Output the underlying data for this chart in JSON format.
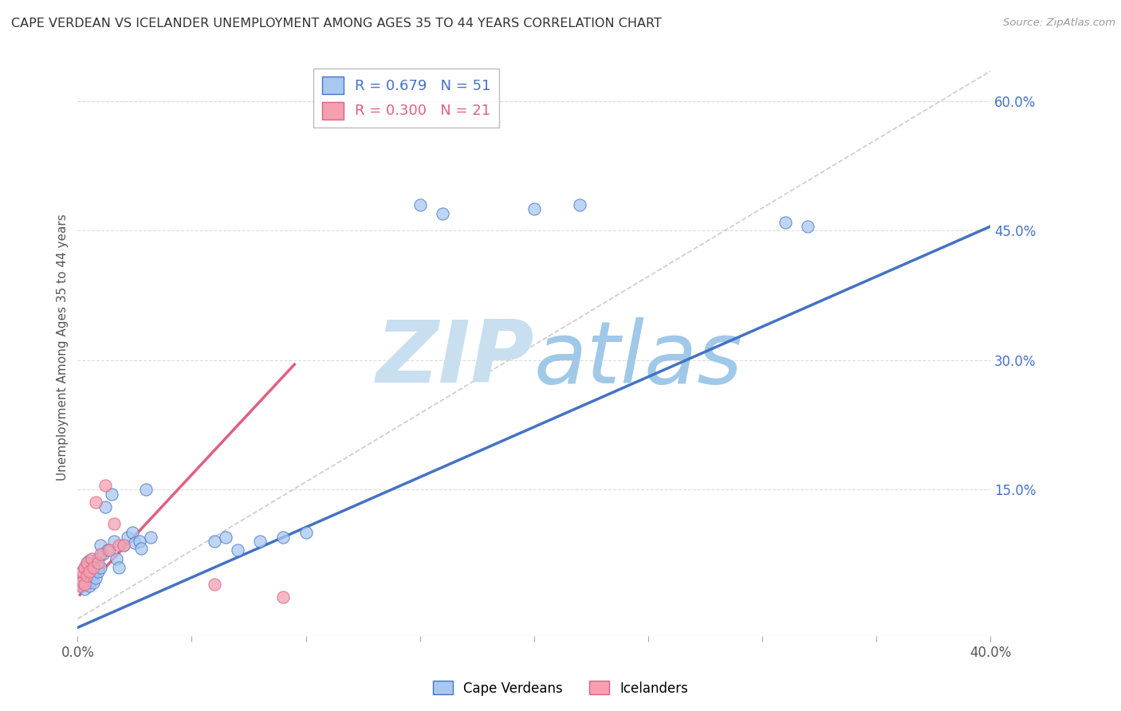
{
  "title": "CAPE VERDEAN VS ICELANDER UNEMPLOYMENT AMONG AGES 35 TO 44 YEARS CORRELATION CHART",
  "source": "Source: ZipAtlas.com",
  "ylabel": "Unemployment Among Ages 35 to 44 years",
  "xlim": [
    0.0,
    0.4
  ],
  "ylim": [
    -0.02,
    0.65
  ],
  "xticks": [
    0.0,
    0.05,
    0.1,
    0.15,
    0.2,
    0.25,
    0.3,
    0.35,
    0.4
  ],
  "xticklabels": [
    "0.0%",
    "",
    "",
    "",
    "",
    "",
    "",
    "",
    "40.0%"
  ],
  "ytick_positions": [
    0.15,
    0.3,
    0.45,
    0.6
  ],
  "ytick_labels": [
    "15.0%",
    "30.0%",
    "45.0%",
    "60.0%"
  ],
  "blue_R": 0.679,
  "blue_N": 51,
  "pink_R": 0.3,
  "pink_N": 21,
  "blue_color": "#A8C8F0",
  "pink_color": "#F4A0B0",
  "blue_line_color": "#4472C4",
  "pink_line_color": "#E06080",
  "ref_line_color": "#CCCCCC",
  "watermark_color": "#D8EEF8",
  "background_color": "#FFFFFF",
  "cape_verdean_x": [
    0.001,
    0.001,
    0.002,
    0.002,
    0.003,
    0.003,
    0.003,
    0.004,
    0.004,
    0.004,
    0.005,
    0.005,
    0.005,
    0.006,
    0.006,
    0.007,
    0.007,
    0.007,
    0.008,
    0.008,
    0.009,
    0.009,
    0.01,
    0.01,
    0.011,
    0.012,
    0.013,
    0.015,
    0.016,
    0.017,
    0.018,
    0.02,
    0.022,
    0.024,
    0.025,
    0.027,
    0.028,
    0.03,
    0.032,
    0.06,
    0.065,
    0.07,
    0.08,
    0.09,
    0.1,
    0.15,
    0.16,
    0.2,
    0.22,
    0.31,
    0.32
  ],
  "cape_verdean_y": [
    0.04,
    0.05,
    0.045,
    0.055,
    0.035,
    0.05,
    0.06,
    0.042,
    0.058,
    0.065,
    0.038,
    0.048,
    0.068,
    0.045,
    0.055,
    0.042,
    0.052,
    0.062,
    0.048,
    0.058,
    0.055,
    0.07,
    0.06,
    0.085,
    0.075,
    0.13,
    0.08,
    0.145,
    0.09,
    0.07,
    0.06,
    0.085,
    0.095,
    0.1,
    0.088,
    0.09,
    0.082,
    0.15,
    0.095,
    0.09,
    0.095,
    0.08,
    0.09,
    0.095,
    0.1,
    0.48,
    0.47,
    0.475,
    0.48,
    0.46,
    0.455
  ],
  "icelander_x": [
    0.001,
    0.001,
    0.002,
    0.002,
    0.003,
    0.003,
    0.004,
    0.004,
    0.005,
    0.006,
    0.007,
    0.008,
    0.009,
    0.01,
    0.012,
    0.014,
    0.016,
    0.018,
    0.02,
    0.06,
    0.09
  ],
  "icelander_y": [
    0.038,
    0.048,
    0.043,
    0.055,
    0.04,
    0.06,
    0.05,
    0.065,
    0.055,
    0.07,
    0.06,
    0.135,
    0.065,
    0.075,
    0.155,
    0.08,
    0.11,
    0.085,
    0.085,
    0.04,
    0.025
  ],
  "blue_line_x": [
    0.0,
    0.4
  ],
  "blue_line_y": [
    -0.01,
    0.455
  ],
  "pink_line_x": [
    0.001,
    0.095
  ],
  "pink_line_y": [
    0.028,
    0.295
  ],
  "ref_line_x": [
    0.0,
    0.4
  ],
  "ref_line_y": [
    0.0,
    0.635
  ]
}
